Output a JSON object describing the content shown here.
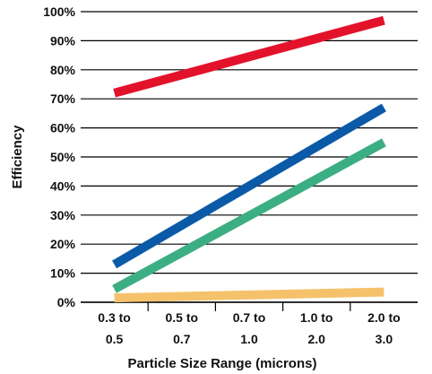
{
  "chart_data": {
    "type": "line",
    "title": "",
    "xlabel": "Particle Size Range (microns)",
    "ylabel": "Efficiency",
    "categories": [
      [
        "0.3 to",
        "0.5"
      ],
      [
        "0.5 to",
        "0.7"
      ],
      [
        "0.7 to",
        "1.0"
      ],
      [
        "1.0 to",
        "2.0"
      ],
      [
        "2.0 to",
        "3.0"
      ]
    ],
    "ylim": [
      0,
      100
    ],
    "yticks": [
      0,
      10,
      20,
      30,
      40,
      50,
      60,
      70,
      80,
      90,
      100
    ],
    "ytick_suffix": "%",
    "grid": true,
    "legend": "none",
    "series": [
      {
        "color": "#e3122b",
        "start": 72,
        "end": 97
      },
      {
        "color": "#0a5aa8",
        "start": 13,
        "end": 67
      },
      {
        "color": "#3cae83",
        "start": 4.5,
        "end": 55
      },
      {
        "color": "#f5c26b",
        "start": 1.5,
        "end": 3.5
      }
    ]
  }
}
